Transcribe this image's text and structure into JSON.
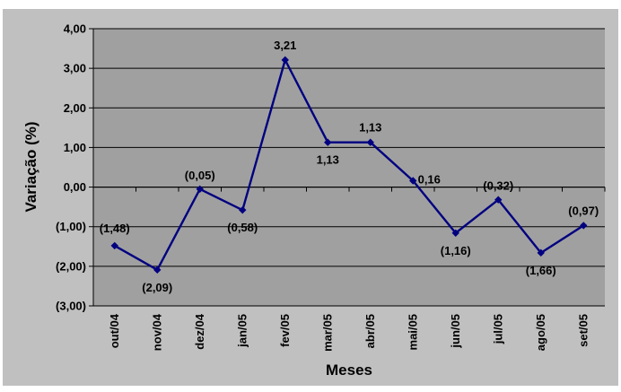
{
  "colors": {
    "frame": "#C0C0C0",
    "plot": "#A0A0A0",
    "gridline": "#000000",
    "line": "#000080",
    "text": "#000000"
  },
  "chart_data": {
    "type": "line",
    "title": "",
    "xlabel": "Meses",
    "ylabel": "Variação (%)",
    "ylim": [
      -3,
      4
    ],
    "yticks": [
      4,
      3,
      2,
      1,
      0,
      -1,
      -2,
      -3
    ],
    "ytick_labels": [
      "4,00",
      "3,00",
      "2,00",
      "1,00",
      "0,00",
      "(1,00)",
      "(2,00)",
      "(3,00)"
    ],
    "grid": true,
    "legend": "none",
    "categories": [
      "out/04",
      "nov/04",
      "dez/04",
      "jan/05",
      "fev/05",
      "mar/05",
      "abr/05",
      "mai/05",
      "jun/05",
      "jul/05",
      "ago/05",
      "set/05"
    ],
    "series": [
      {
        "values": [
          -1.48,
          -2.09,
          -0.05,
          -0.58,
          3.21,
          1.13,
          1.13,
          0.16,
          -1.16,
          -0.32,
          -1.66,
          -0.97
        ],
        "labels": [
          "(1,48)",
          "(2,09)",
          "(0,05)",
          "(0,58)",
          "3,21",
          "1,13",
          "1,13",
          "0,16",
          "(1,16)",
          "(0,32)",
          "(1,66)",
          "(0,97)"
        ],
        "color": "#000080"
      }
    ]
  }
}
